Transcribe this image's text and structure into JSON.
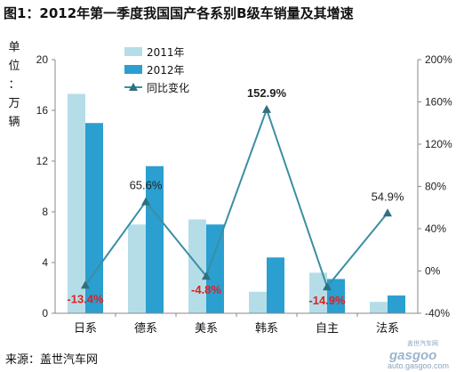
{
  "chart_data": {
    "type": "bar",
    "title": "图1：2012年第一季度我国国产各系别B级车销量及其增速",
    "ylabel": "单位：万辆",
    "categories": [
      "日系",
      "德系",
      "美系",
      "韩系",
      "自主",
      "法系"
    ],
    "ylim": [
      0,
      20
    ],
    "yticks": [
      0,
      4,
      8,
      12,
      16,
      20
    ],
    "y2lim": [
      -40,
      200
    ],
    "y2ticks": [
      "-40%",
      "0%",
      "40%",
      "80%",
      "120%",
      "160%",
      "200%"
    ],
    "legend_position": "top-left",
    "series": [
      {
        "name": "2011年",
        "type": "bar",
        "axis": "left",
        "color": "#b5dde8",
        "values": [
          17.3,
          7.0,
          7.4,
          1.7,
          3.2,
          0.9
        ]
      },
      {
        "name": "2012年",
        "type": "bar",
        "axis": "left",
        "color": "#2a9fd0",
        "values": [
          15.0,
          11.6,
          7.0,
          4.4,
          2.7,
          1.4
        ]
      },
      {
        "name": "同比变化",
        "type": "line",
        "axis": "right",
        "color": "#3a8fa3",
        "values": [
          -13.4,
          65.6,
          -4.8,
          152.9,
          -14.9,
          54.9
        ]
      }
    ],
    "data_labels": [
      "-13.4%",
      "65.6%",
      "-4.8%",
      "152.9%",
      "-14.9%",
      "54.9%"
    ]
  },
  "source": "来源：盖世汽车网",
  "watermark": {
    "line1": "盖世汽车网",
    "line2": "gasgoo",
    "line3": "auto.gasgoo.com"
  }
}
